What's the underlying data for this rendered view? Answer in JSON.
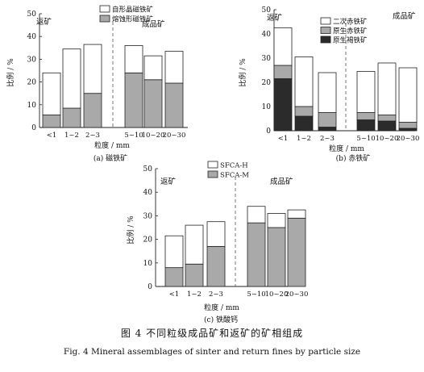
{
  "figure": {
    "caption_cn": "图 4   不同粒级成品矿和返矿的矿相组成",
    "caption_en": "Fig. 4    Mineral assemblages of sinter and return fines by particle size"
  },
  "colors": {
    "white_bar": "#ffffff",
    "light_gray": "#a9a9a9",
    "dark": "#2b2b2b",
    "axis": "#222222"
  },
  "chart_data": [
    {
      "id": "a",
      "type": "bar",
      "stacked": true,
      "subtitle": "(a) 磁铁矿",
      "xlabel": "粒度 / mm",
      "ylabel": "比例 / %",
      "ylim": [
        0,
        50
      ],
      "yticks": [
        0,
        10,
        20,
        30,
        40,
        50
      ],
      "categories": [
        "<1",
        "1~2",
        "2~3",
        "5~10",
        "10~20",
        "20~30"
      ],
      "series": [
        {
          "name": "熔蚀形磁铁矿",
          "values": [
            5.5,
            8.5,
            15,
            24,
            21,
            19.5
          ],
          "color": "#a9a9a9"
        },
        {
          "name": "自形晶磁铁矿",
          "values": [
            18.5,
            26,
            21.5,
            12,
            10.5,
            14
          ],
          "color": "#ffffff"
        }
      ],
      "legend_order": [
        1,
        0
      ],
      "legend_position": "top-right",
      "region_labels": [
        "返矿",
        "成品矿"
      ]
    },
    {
      "id": "b",
      "type": "bar",
      "stacked": true,
      "subtitle": "(b) 赤铁矿",
      "xlabel": "粒度 / mm",
      "ylabel": "比例 / %",
      "ylim": [
        0,
        50
      ],
      "yticks": [
        0,
        10,
        20,
        30,
        40,
        50
      ],
      "categories": [
        "<1",
        "1~2",
        "2~3",
        "5~10",
        "10~20",
        "20~30"
      ],
      "series": [
        {
          "name": "原生褐铁矿",
          "values": [
            21.5,
            6,
            1.5,
            4.5,
            4,
            1
          ],
          "color": "#2b2b2b"
        },
        {
          "name": "原生赤铁矿",
          "values": [
            5.5,
            4,
            6,
            3,
            2.5,
            2.5
          ],
          "color": "#a9a9a9"
        },
        {
          "name": "二次赤铁矿",
          "values": [
            15.5,
            20.5,
            16.5,
            17,
            21.5,
            22.5
          ],
          "color": "#ffffff"
        }
      ],
      "legend_order": [
        2,
        1,
        0
      ],
      "legend_position": "top-right",
      "region_labels": [
        "返矿",
        "成品矿"
      ]
    },
    {
      "id": "c",
      "type": "bar",
      "stacked": true,
      "subtitle": "(c) 铁酸钙",
      "xlabel": "粒度 / mm",
      "ylabel": "比例 / %",
      "ylim": [
        0,
        50
      ],
      "yticks": [
        0,
        10,
        20,
        30,
        40,
        50
      ],
      "categories": [
        "<1",
        "1~2",
        "2~3",
        "5~10",
        "10~20",
        "20~30"
      ],
      "series": [
        {
          "name": "SFCA-M",
          "values": [
            8,
            9.5,
            17,
            27,
            25,
            29
          ],
          "color": "#a9a9a9"
        },
        {
          "name": "SFCA-H",
          "values": [
            13.5,
            16.5,
            10.5,
            7,
            6,
            3.5
          ],
          "color": "#ffffff"
        }
      ],
      "legend_order": [
        1,
        0
      ],
      "legend_position": "top-left",
      "region_labels": [
        "返矿",
        "成品矿"
      ]
    }
  ]
}
